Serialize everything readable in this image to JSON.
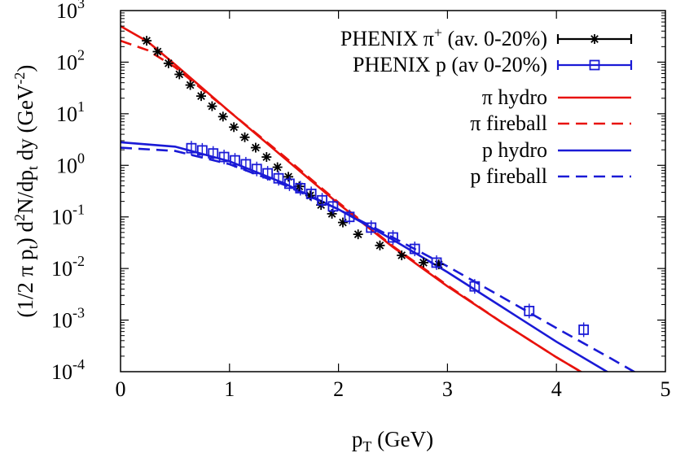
{
  "chart_data": {
    "type": "scatter",
    "xlabel_main": "p",
    "xlabel_sub": "T",
    "xlabel_rest": " (GeV)",
    "ylabel_parts": {
      "a": "(1/2 π p",
      "b": "t",
      "c": ") d",
      "d": "2",
      "e": "N/dp",
      "f": "t",
      "g": " dy (GeV",
      "h": "-2",
      "i": ")"
    },
    "xlim": [
      0,
      5
    ],
    "ylim": [
      0.0001,
      1000
    ],
    "yscale": "log",
    "x_ticks": [
      "0",
      "1",
      "2",
      "3",
      "4",
      "5"
    ],
    "y_ticks": [
      {
        "base": "10",
        "exp": "-4"
      },
      {
        "base": "10",
        "exp": "-3"
      },
      {
        "base": "10",
        "exp": "-2"
      },
      {
        "base": "10",
        "exp": "-1"
      },
      {
        "base": "10",
        "exp": "0"
      },
      {
        "base": "10",
        "exp": "1"
      },
      {
        "base": "10",
        "exp": "2"
      },
      {
        "base": "10",
        "exp": "3"
      }
    ],
    "legend_position": "top-right",
    "series": [
      {
        "name": "PHENIX π+ (av. 0-20%)",
        "legend_main": "PHENIX π",
        "legend_sup": "+",
        "legend_rest": " (av. 0-20%)",
        "kind": "points",
        "marker": "star",
        "color": "#000000",
        "x": [
          0.24,
          0.34,
          0.44,
          0.54,
          0.64,
          0.74,
          0.84,
          0.94,
          1.04,
          1.14,
          1.24,
          1.34,
          1.44,
          1.54,
          1.64,
          1.74,
          1.84,
          1.94,
          2.04,
          2.18,
          2.38,
          2.58,
          2.78,
          2.92
        ],
        "y": [
          260,
          160,
          95,
          58,
          36,
          22,
          14,
          8.8,
          5.5,
          3.5,
          2.2,
          1.45,
          0.92,
          0.6,
          0.39,
          0.26,
          0.17,
          0.115,
          0.078,
          0.046,
          0.028,
          0.018,
          0.013,
          0.012
        ]
      },
      {
        "name": "PHENIX p (av 0-20%)",
        "legend_main": "PHENIX p (av 0-20%)",
        "kind": "points",
        "marker": "open-square",
        "color": "#1a1ad6",
        "x": [
          0.65,
          0.75,
          0.85,
          0.95,
          1.05,
          1.15,
          1.25,
          1.35,
          1.45,
          1.55,
          1.65,
          1.75,
          1.85,
          1.95,
          2.1,
          2.3,
          2.5,
          2.7,
          2.9,
          3.25,
          3.75,
          4.25
        ],
        "y": [
          2.15,
          1.95,
          1.7,
          1.45,
          1.25,
          1.05,
          0.85,
          0.7,
          0.56,
          0.44,
          0.36,
          0.28,
          0.21,
          0.16,
          0.1,
          0.062,
          0.04,
          0.024,
          0.013,
          0.0045,
          0.0015,
          0.00065
        ]
      },
      {
        "name": "π hydro",
        "legend_main": "π hydro",
        "kind": "line",
        "dash": "solid",
        "color": "#e8120c",
        "x": [
          0.0,
          0.25,
          0.5,
          1.0,
          1.5,
          2.0,
          2.5,
          3.0,
          3.5,
          4.0,
          4.3
        ],
        "y": [
          500,
          250,
          90,
          11,
          1.4,
          0.18,
          0.026,
          0.0045,
          0.0009,
          0.00019,
          8e-05
        ]
      },
      {
        "name": "π fireball",
        "legend_main": "π fireball",
        "kind": "line",
        "dash": "dashed",
        "color": "#e8120c",
        "x": [
          0.0,
          0.25,
          0.5,
          1.0,
          1.5,
          2.0,
          2.5,
          3.0,
          3.5,
          4.0,
          4.3
        ],
        "y": [
          260,
          170,
          80,
          11,
          1.5,
          0.19,
          0.027,
          0.0047,
          0.0009,
          0.00019,
          8e-05
        ]
      },
      {
        "name": "p hydro",
        "legend_main": "p hydro",
        "kind": "line",
        "dash": "solid",
        "color": "#1a1ad6",
        "x": [
          0.0,
          0.5,
          1.0,
          1.5,
          2.0,
          2.5,
          3.0,
          3.5,
          4.0,
          4.5,
          4.6
        ],
        "y": [
          2.8,
          2.3,
          1.2,
          0.45,
          0.14,
          0.036,
          0.0085,
          0.0018,
          0.00038,
          9e-05,
          7e-05
        ]
      },
      {
        "name": "p fireball",
        "legend_main": "p fireball",
        "kind": "line",
        "dash": "dashed",
        "color": "#1a1ad6",
        "x": [
          0.0,
          0.5,
          1.0,
          1.5,
          2.0,
          2.5,
          3.0,
          3.5,
          4.0,
          4.5,
          4.75
        ],
        "y": [
          2.2,
          1.9,
          1.05,
          0.42,
          0.14,
          0.04,
          0.011,
          0.0028,
          0.0007,
          0.00018,
          9e-05
        ]
      }
    ]
  }
}
